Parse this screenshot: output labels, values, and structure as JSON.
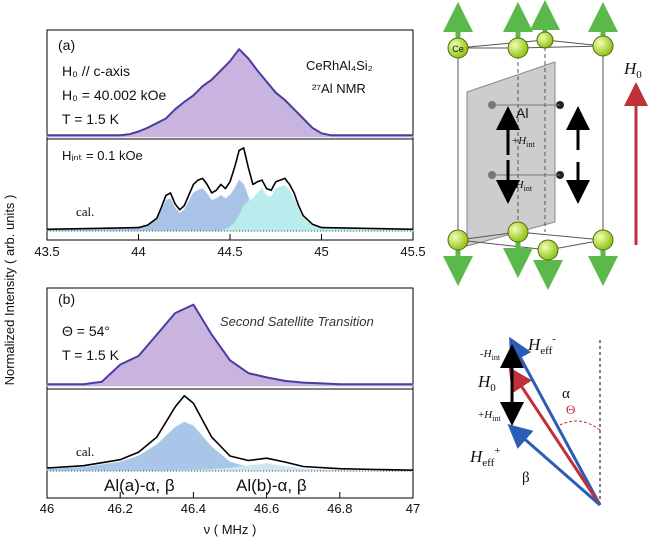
{
  "ylabel": "Normalized Intensity ( arb. units )",
  "chart_data": [
    {
      "type": "area",
      "annotations": [
        "(a)",
        "H₀ // c-axis",
        "H₀ = 40.002 kOe",
        "T = 1.5 K",
        "CeRhAl₄Si₂",
        "²⁷Al NMR"
      ],
      "x": [
        43.5,
        43.55,
        43.6,
        43.65,
        43.7,
        43.75,
        43.8,
        43.85,
        43.9,
        43.95,
        44.0,
        44.05,
        44.1,
        44.15,
        44.2,
        44.25,
        44.3,
        44.35,
        44.4,
        44.45,
        44.5,
        44.55,
        44.6,
        44.65,
        44.7,
        44.75,
        44.8,
        44.85,
        44.9,
        44.95,
        45.0,
        45.05,
        45.1,
        45.15,
        45.2,
        45.25,
        45.3,
        45.35,
        45.4,
        45.45,
        45.5
      ],
      "values": [
        0.02,
        0.02,
        0.02,
        0.02,
        0.02,
        0.02,
        0.02,
        0.02,
        0.02,
        0.03,
        0.06,
        0.1,
        0.15,
        0.2,
        0.3,
        0.38,
        0.45,
        0.55,
        0.62,
        0.72,
        0.82,
        0.95,
        0.85,
        0.72,
        0.6,
        0.48,
        0.4,
        0.3,
        0.2,
        0.1,
        0.04,
        0.02,
        0.02,
        0.02,
        0.02,
        0.02,
        0.02,
        0.02,
        0.02,
        0.02,
        0.02
      ],
      "color": "#4a3ca0",
      "fill": "#c8b4de",
      "xlim": [
        43.5,
        45.5
      ],
      "ylim": [
        0,
        1.05
      ]
    },
    {
      "type": "line",
      "annotations": [
        "Hᵢₙₜ = 0.1 kOe",
        "cal."
      ],
      "x": [
        43.5,
        44.0,
        44.05,
        44.1,
        44.125,
        44.15,
        44.175,
        44.2,
        44.225,
        44.25,
        44.3,
        44.325,
        44.35,
        44.375,
        44.4,
        44.425,
        44.45,
        44.475,
        44.5,
        44.525,
        44.55,
        44.575,
        44.6,
        44.625,
        44.65,
        44.675,
        44.7,
        44.725,
        44.75,
        44.775,
        44.8,
        44.825,
        44.85,
        44.875,
        44.9,
        44.95,
        45.0,
        45.5
      ],
      "series": [
        {
          "style": "area",
          "color": "#a9c3e6",
          "values": [
            0.01,
            0.03,
            0.06,
            0.13,
            0.24,
            0.36,
            0.38,
            0.27,
            0.21,
            0.25,
            0.45,
            0.48,
            0.5,
            0.44,
            0.36,
            0.38,
            0.42,
            0.38,
            0.42,
            0.5,
            0.6,
            0.55,
            0.4,
            0.25,
            0.15,
            0.08,
            0.04,
            0.02,
            0.01,
            0,
            0,
            0,
            0,
            0,
            0,
            0,
            0,
            0
          ]
        },
        {
          "style": "area",
          "color": "#b9ecec",
          "values": [
            0,
            0,
            0,
            0,
            0,
            0,
            0,
            0,
            0,
            0,
            0,
            0,
            0,
            0,
            0,
            0,
            0,
            0.02,
            0.05,
            0.1,
            0.18,
            0.3,
            0.35,
            0.38,
            0.45,
            0.5,
            0.42,
            0.4,
            0.5,
            0.52,
            0.54,
            0.48,
            0.38,
            0.25,
            0.15,
            0.06,
            0.03,
            0.01
          ]
        },
        {
          "style": "line",
          "color": "#000000",
          "values": [
            0.02,
            0.04,
            0.07,
            0.15,
            0.28,
            0.42,
            0.45,
            0.32,
            0.25,
            0.3,
            0.55,
            0.6,
            0.62,
            0.55,
            0.45,
            0.48,
            0.55,
            0.5,
            0.58,
            0.75,
            0.95,
            0.98,
            0.75,
            0.55,
            0.58,
            0.6,
            0.5,
            0.48,
            0.58,
            0.6,
            0.62,
            0.55,
            0.45,
            0.3,
            0.18,
            0.08,
            0.04,
            0.02
          ]
        }
      ],
      "xlim": [
        43.5,
        45.5
      ],
      "xticks": [
        43.5,
        44,
        44.5,
        45,
        45.5
      ],
      "ylim": [
        0,
        1.05
      ]
    },
    {
      "type": "area",
      "annotations": [
        "(b)",
        "Θ = 54°",
        "T = 1.5 K",
        "Second Satellite Transition"
      ],
      "x": [
        46,
        46.05,
        46.1,
        46.15,
        46.2,
        46.25,
        46.3,
        46.35,
        46.4,
        46.45,
        46.5,
        46.55,
        46.6,
        46.65,
        46.7,
        46.75,
        46.8,
        46.85,
        46.9,
        46.95,
        47
      ],
      "values": [
        0.02,
        0.02,
        0.02,
        0.05,
        0.25,
        0.35,
        0.6,
        0.85,
        0.95,
        0.6,
        0.3,
        0.15,
        0.1,
        0.06,
        0.04,
        0.03,
        0.02,
        0.02,
        0.02,
        0.02,
        0.02
      ],
      "color": "#4a3ca0",
      "fill": "#c8b4de",
      "xlim": [
        46,
        47
      ],
      "ylim": [
        0,
        1.05
      ]
    },
    {
      "type": "line",
      "annotations": [
        "cal.",
        "Al(a)-α, β",
        "Al(b)-α, β"
      ],
      "x": [
        46,
        46.1,
        46.2,
        46.25,
        46.3,
        46.35,
        46.375,
        46.4,
        46.45,
        46.5,
        46.55,
        46.6,
        46.65,
        46.7,
        46.8,
        46.9,
        47
      ],
      "series": [
        {
          "style": "area",
          "color": "#a9c6e8",
          "values": [
            0.03,
            0.05,
            0.12,
            0.2,
            0.35,
            0.58,
            0.65,
            0.6,
            0.32,
            0.12,
            0.05,
            0.03,
            0.02,
            0.01,
            0.005,
            0,
            0
          ]
        },
        {
          "style": "area",
          "color": "#cfe6f0",
          "values": [
            0,
            0,
            0,
            0,
            0,
            0.005,
            0.01,
            0.01,
            0.02,
            0.04,
            0.07,
            0.1,
            0.06,
            0.03,
            0.01,
            0,
            0
          ]
        },
        {
          "style": "line",
          "color": "#000000",
          "values": [
            0.04,
            0.07,
            0.15,
            0.25,
            0.45,
            0.85,
            1.0,
            0.9,
            0.45,
            0.2,
            0.14,
            0.17,
            0.12,
            0.06,
            0.03,
            0.02,
            0.01
          ]
        }
      ],
      "xlim": [
        46,
        47
      ],
      "xticks": [
        46,
        46.2,
        46.4,
        46.6,
        46.8,
        47
      ],
      "ylim": [
        0,
        1.05
      ],
      "xlabel": "ν ( MHz )"
    }
  ],
  "diagrams": {
    "crystal": {
      "ce": "Ce",
      "al": "Al",
      "plus_hint": {
        "sign": "+",
        "main": "H",
        "sub": "int"
      },
      "minus_hint": {
        "sign": "-",
        "main": "H",
        "sub": "int"
      },
      "h0": {
        "main": "H",
        "sub": "0"
      }
    },
    "vectors": {
      "minus_hint": {
        "sign": "-",
        "main": "H",
        "sub": "int"
      },
      "h0": {
        "main": "H",
        "sub": "0"
      },
      "plus_hint": {
        "sign": "+",
        "main": "H",
        "sub": "int"
      },
      "heff_minus": {
        "main": "H",
        "sub": "eff",
        "sup": "-"
      },
      "heff_plus": {
        "main": "H",
        "sub": "eff",
        "sup": "+"
      },
      "alpha": "α",
      "theta": "Θ",
      "beta": "β"
    }
  }
}
